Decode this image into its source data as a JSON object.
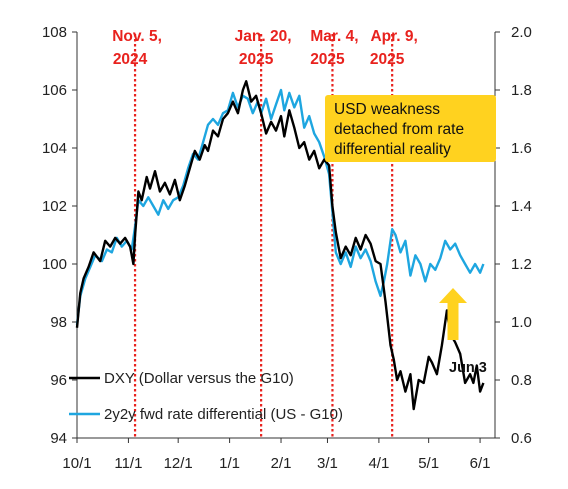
{
  "chart_data": {
    "type": "line",
    "y_left": {
      "ticks": [
        "94",
        "96",
        "98",
        "100",
        "102",
        "104",
        "106",
        "108"
      ],
      "range": [
        94,
        108
      ]
    },
    "y_right": {
      "ticks": [
        "0.6",
        "0.8",
        "1.0",
        "1.2",
        "1.4",
        "1.6",
        "1.8",
        "2.0"
      ],
      "range": [
        0.6,
        2.0
      ]
    },
    "x_range": [
      "2024-10-01",
      "2025-06-10"
    ],
    "x_ticks": [
      {
        "date": "2024-10-01",
        "label": "10/1"
      },
      {
        "date": "2024-11-01",
        "label": "11/1"
      },
      {
        "date": "2024-12-01",
        "label": "12/1"
      },
      {
        "date": "2025-01-01",
        "label": "1/1"
      },
      {
        "date": "2025-02-01",
        "label": "2/1"
      },
      {
        "date": "2025-03-01",
        "label": "3/1"
      },
      {
        "date": "2025-04-01",
        "label": "4/1"
      },
      {
        "date": "2025-05-01",
        "label": "5/1"
      },
      {
        "date": "2025-06-01",
        "label": "6/1"
      }
    ],
    "events": [
      {
        "date": "2024-11-05",
        "line1": "Nov. 5,",
        "line2": "2024"
      },
      {
        "date": "2025-01-20",
        "line1": "Jan. 20,",
        "line2": "2025"
      },
      {
        "date": "2025-03-04",
        "line1": "Mar. 4,",
        "line2": "2025"
      },
      {
        "date": "2025-04-09",
        "line1": "Apr. 9,",
        "line2": "2025"
      }
    ],
    "series": [
      {
        "name": "DXY (Dollar versus the G10)",
        "color": "#000000",
        "axis": "left",
        "points": [
          [
            "2024-10-01",
            97.8
          ],
          [
            "2024-10-03",
            99.0
          ],
          [
            "2024-10-05",
            99.5
          ],
          [
            "2024-10-08",
            99.9
          ],
          [
            "2024-10-11",
            100.4
          ],
          [
            "2024-10-15",
            100.1
          ],
          [
            "2024-10-18",
            100.8
          ],
          [
            "2024-10-21",
            100.6
          ],
          [
            "2024-10-24",
            100.9
          ],
          [
            "2024-10-27",
            100.7
          ],
          [
            "2024-10-30",
            100.9
          ],
          [
            "2024-11-02",
            100.6
          ],
          [
            "2024-11-04",
            100.0
          ],
          [
            "2024-11-05",
            101.0
          ],
          [
            "2024-11-07",
            102.5
          ],
          [
            "2024-11-09",
            102.2
          ],
          [
            "2024-11-12",
            103.0
          ],
          [
            "2024-11-14",
            102.6
          ],
          [
            "2024-11-17",
            103.2
          ],
          [
            "2024-11-20",
            102.5
          ],
          [
            "2024-11-23",
            102.8
          ],
          [
            "2024-11-26",
            102.4
          ],
          [
            "2024-11-29",
            102.9
          ],
          [
            "2024-12-02",
            102.2
          ],
          [
            "2024-12-05",
            102.7
          ],
          [
            "2024-12-08",
            103.3
          ],
          [
            "2024-12-11",
            103.9
          ],
          [
            "2024-12-14",
            103.6
          ],
          [
            "2024-12-17",
            104.1
          ],
          [
            "2024-12-19",
            103.9
          ],
          [
            "2024-12-22",
            104.6
          ],
          [
            "2024-12-25",
            104.4
          ],
          [
            "2024-12-28",
            105.0
          ],
          [
            "2024-12-31",
            105.2
          ],
          [
            "2025-01-03",
            105.6
          ],
          [
            "2025-01-06",
            105.2
          ],
          [
            "2025-01-09",
            106.0
          ],
          [
            "2025-01-11",
            106.3
          ],
          [
            "2025-01-14",
            105.6
          ],
          [
            "2025-01-17",
            105.8
          ],
          [
            "2025-01-20",
            105.2
          ],
          [
            "2025-01-23",
            104.5
          ],
          [
            "2025-01-26",
            104.9
          ],
          [
            "2025-01-29",
            104.6
          ],
          [
            "2025-02-01",
            105.1
          ],
          [
            "2025-02-03",
            104.4
          ],
          [
            "2025-02-06",
            105.3
          ],
          [
            "2025-02-09",
            104.7
          ],
          [
            "2025-02-12",
            104.0
          ],
          [
            "2025-02-15",
            104.2
          ],
          [
            "2025-02-18",
            103.6
          ],
          [
            "2025-02-21",
            103.9
          ],
          [
            "2025-02-24",
            103.3
          ],
          [
            "2025-02-27",
            103.6
          ],
          [
            "2025-03-02",
            103.4
          ],
          [
            "2025-03-04",
            102.0
          ],
          [
            "2025-03-06",
            101.1
          ],
          [
            "2025-03-09",
            100.2
          ],
          [
            "2025-03-12",
            100.6
          ],
          [
            "2025-03-15",
            100.3
          ],
          [
            "2025-03-18",
            100.9
          ],
          [
            "2025-03-21",
            100.5
          ],
          [
            "2025-03-24",
            101.0
          ],
          [
            "2025-03-27",
            100.7
          ],
          [
            "2025-03-30",
            100.1
          ],
          [
            "2025-04-02",
            100.0
          ],
          [
            "2025-04-05",
            98.7
          ],
          [
            "2025-04-08",
            97.2
          ],
          [
            "2025-04-10",
            96.7
          ],
          [
            "2025-04-12",
            96.0
          ],
          [
            "2025-04-14",
            96.3
          ],
          [
            "2025-04-17",
            95.6
          ],
          [
            "2025-04-20",
            96.2
          ],
          [
            "2025-04-22",
            95.0
          ],
          [
            "2025-04-25",
            96.0
          ],
          [
            "2025-04-28",
            95.9
          ],
          [
            "2025-05-01",
            96.8
          ],
          [
            "2025-05-03",
            96.6
          ],
          [
            "2025-05-06",
            96.2
          ],
          [
            "2025-05-09",
            97.2
          ],
          [
            "2025-05-12",
            98.4
          ],
          [
            "2025-05-14",
            97.6
          ],
          [
            "2025-05-17",
            97.3
          ],
          [
            "2025-05-20",
            96.9
          ],
          [
            "2025-05-23",
            95.9
          ],
          [
            "2025-05-26",
            96.2
          ],
          [
            "2025-05-28",
            95.9
          ],
          [
            "2025-05-30",
            96.5
          ],
          [
            "2025-06-01",
            95.6
          ],
          [
            "2025-06-03",
            95.9
          ]
        ]
      },
      {
        "name": "2y2y fwd rate differential (US - G10)",
        "color": "#1ea6e0",
        "axis": "right",
        "points": [
          [
            "2024-10-01",
            0.99
          ],
          [
            "2024-10-03",
            1.09
          ],
          [
            "2024-10-06",
            1.15
          ],
          [
            "2024-10-09",
            1.19
          ],
          [
            "2024-10-12",
            1.23
          ],
          [
            "2024-10-16",
            1.21
          ],
          [
            "2024-10-19",
            1.25
          ],
          [
            "2024-10-22",
            1.24
          ],
          [
            "2024-10-25",
            1.29
          ],
          [
            "2024-10-28",
            1.26
          ],
          [
            "2024-10-31",
            1.28
          ],
          [
            "2024-11-03",
            1.25
          ],
          [
            "2024-11-05",
            1.33
          ],
          [
            "2024-11-07",
            1.42
          ],
          [
            "2024-11-10",
            1.4
          ],
          [
            "2024-11-13",
            1.43
          ],
          [
            "2024-11-16",
            1.4
          ],
          [
            "2024-11-19",
            1.37
          ],
          [
            "2024-11-22",
            1.42
          ],
          [
            "2024-11-25",
            1.39
          ],
          [
            "2024-11-28",
            1.42
          ],
          [
            "2024-12-01",
            1.43
          ],
          [
            "2024-12-04",
            1.47
          ],
          [
            "2024-12-07",
            1.53
          ],
          [
            "2024-12-10",
            1.58
          ],
          [
            "2024-12-13",
            1.56
          ],
          [
            "2024-12-16",
            1.62
          ],
          [
            "2024-12-19",
            1.68
          ],
          [
            "2024-12-22",
            1.7
          ],
          [
            "2024-12-25",
            1.68
          ],
          [
            "2024-12-28",
            1.72
          ],
          [
            "2024-12-31",
            1.73
          ],
          [
            "2025-01-03",
            1.79
          ],
          [
            "2025-01-06",
            1.74
          ],
          [
            "2025-01-09",
            1.78
          ],
          [
            "2025-01-12",
            1.77
          ],
          [
            "2025-01-15",
            1.72
          ],
          [
            "2025-01-18",
            1.76
          ],
          [
            "2025-01-20",
            1.72
          ],
          [
            "2025-01-23",
            1.77
          ],
          [
            "2025-01-26",
            1.7
          ],
          [
            "2025-01-29",
            1.75
          ],
          [
            "2025-02-01",
            1.8
          ],
          [
            "2025-02-03",
            1.73
          ],
          [
            "2025-02-06",
            1.79
          ],
          [
            "2025-02-09",
            1.74
          ],
          [
            "2025-02-12",
            1.78
          ],
          [
            "2025-02-15",
            1.67
          ],
          [
            "2025-02-18",
            1.71
          ],
          [
            "2025-02-21",
            1.65
          ],
          [
            "2025-02-24",
            1.62
          ],
          [
            "2025-02-27",
            1.57
          ],
          [
            "2025-03-02",
            1.51
          ],
          [
            "2025-03-04",
            1.38
          ],
          [
            "2025-03-06",
            1.24
          ],
          [
            "2025-03-09",
            1.2
          ],
          [
            "2025-03-12",
            1.24
          ],
          [
            "2025-03-15",
            1.19
          ],
          [
            "2025-03-18",
            1.26
          ],
          [
            "2025-03-21",
            1.22
          ],
          [
            "2025-03-24",
            1.25
          ],
          [
            "2025-03-27",
            1.21
          ],
          [
            "2025-03-30",
            1.14
          ],
          [
            "2025-04-02",
            1.09
          ],
          [
            "2025-04-04",
            1.14
          ],
          [
            "2025-04-06",
            1.2
          ],
          [
            "2025-04-09",
            1.32
          ],
          [
            "2025-04-11",
            1.3
          ],
          [
            "2025-04-14",
            1.24
          ],
          [
            "2025-04-17",
            1.28
          ],
          [
            "2025-04-20",
            1.16
          ],
          [
            "2025-04-23",
            1.23
          ],
          [
            "2025-04-26",
            1.2
          ],
          [
            "2025-04-29",
            1.14
          ],
          [
            "2025-05-02",
            1.2
          ],
          [
            "2025-05-05",
            1.18
          ],
          [
            "2025-05-08",
            1.22
          ],
          [
            "2025-05-11",
            1.28
          ],
          [
            "2025-05-14",
            1.25
          ],
          [
            "2025-05-17",
            1.27
          ],
          [
            "2025-05-20",
            1.23
          ],
          [
            "2025-05-23",
            1.2
          ],
          [
            "2025-05-26",
            1.17
          ],
          [
            "2025-05-29",
            1.2
          ],
          [
            "2025-06-01",
            1.17
          ],
          [
            "2025-06-03",
            1.2
          ]
        ]
      }
    ]
  },
  "callout": {
    "lines": [
      "USD weakness",
      "detached from rate",
      "differential reality"
    ]
  },
  "arrow_label": "Jun 3"
}
